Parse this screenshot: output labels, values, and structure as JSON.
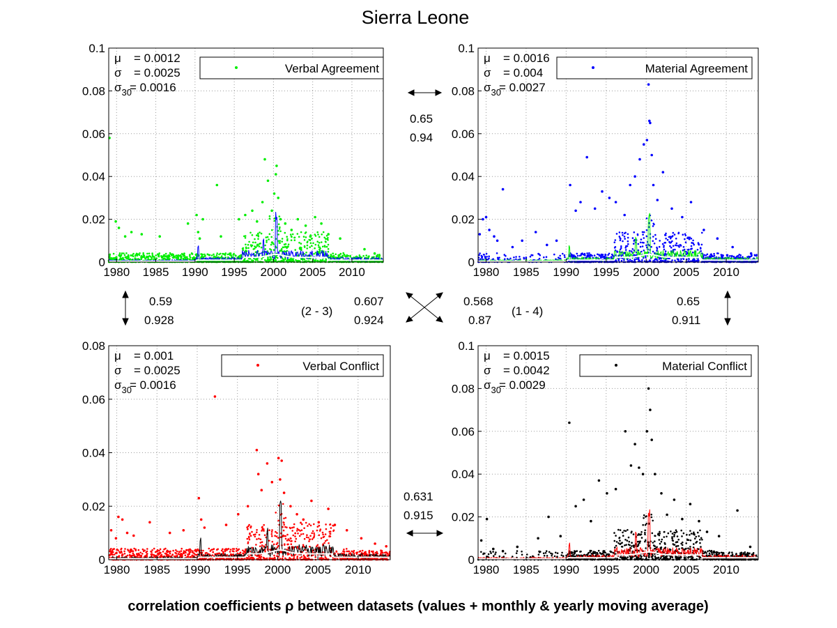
{
  "figure": {
    "title": "Sierra Leone",
    "caption": "correlation coefficients ρ between datasets (values + monthly & yearly moving average)"
  },
  "chart_data": [
    {
      "type": "scatter",
      "id": "tl",
      "legend": "Verbal Agreement",
      "color": "#00ee00",
      "avg_color": "#0000ff",
      "yearly_color": "#ffffff",
      "xlim": [
        1979,
        2014
      ],
      "ylim": [
        0,
        0.1
      ],
      "xticks": [
        1980,
        1985,
        1990,
        1995,
        2000,
        2005,
        2010
      ],
      "yticks": [
        0,
        0.02,
        0.04,
        0.06,
        0.08,
        0.1
      ],
      "yticklabels": [
        "0",
        "0.02",
        "0.04",
        "0.06",
        "0.08",
        "0.1"
      ],
      "stats": {
        "mu": "= 0.0012",
        "sigma": "= 0.0025",
        "sigma30": "= 0.0016"
      },
      "x": [
        1979.1,
        1979.9,
        1980.3,
        1981.1,
        1981.9,
        1983.2,
        1985.5,
        1989.1,
        1990.2,
        1990.4,
        1990.6,
        1991.0,
        1992.8,
        1993.3,
        1995.6,
        1996.4,
        1997.3,
        1997.9,
        1998.6,
        1998.9,
        1999.3,
        1999.8,
        2000.1,
        2000.3,
        2000.4,
        2000.6,
        2000.9,
        2001.5,
        2002.3,
        2003.1,
        2004.1,
        2004.7,
        2005.3,
        2006.1,
        2007.0,
        2008.5,
        2011.6,
        2012.9
      ],
      "y": [
        0.058,
        0.019,
        0.016,
        0.012,
        0.014,
        0.013,
        0.012,
        0.018,
        0.022,
        0.014,
        0.011,
        0.02,
        0.036,
        0.012,
        0.02,
        0.022,
        0.024,
        0.019,
        0.028,
        0.048,
        0.038,
        0.024,
        0.032,
        0.041,
        0.045,
        0.03,
        0.02,
        0.018,
        0.015,
        0.02,
        0.017,
        0.012,
        0.021,
        0.018,
        0.013,
        0.011,
        0.006,
        0.004
      ]
    },
    {
      "type": "scatter",
      "id": "tr",
      "legend": "Material Agreement",
      "color": "#0000ff",
      "avg_color": "#00ee00",
      "yearly_color": "#ffffff",
      "xlim": [
        1979,
        2014
      ],
      "ylim": [
        0,
        0.1
      ],
      "xticks": [
        1980,
        1985,
        1990,
        1995,
        2000,
        2005,
        2010
      ],
      "yticks": [
        0,
        0.02,
        0.04,
        0.06,
        0.08,
        0.1
      ],
      "yticklabels": [
        "0",
        "0.02",
        "0.04",
        "0.06",
        "0.08",
        "0.1"
      ],
      "stats": {
        "mu": "= 0.0016",
        "sigma": "= 0.004",
        "sigma30": "= 0.0027"
      },
      "x": [
        1979.2,
        1979.6,
        1980.0,
        1980.4,
        1981.0,
        1981.4,
        1982.1,
        1983.3,
        1984.5,
        1986.2,
        1987.6,
        1988.8,
        1990.5,
        1991.2,
        1991.8,
        1992.6,
        1993.6,
        1994.5,
        1995.4,
        1996.2,
        1997.3,
        1998.0,
        1998.6,
        1999.2,
        1999.7,
        2000.1,
        2000.3,
        2000.4,
        2000.5,
        2000.7,
        2000.9,
        2001.4,
        2002.1,
        2003.2,
        2004.5,
        2005.6,
        2007.2,
        2008.9,
        2010.8,
        2013.1
      ],
      "y": [
        0.013,
        0.02,
        0.021,
        0.015,
        0.012,
        0.01,
        0.034,
        0.007,
        0.01,
        0.014,
        0.008,
        0.01,
        0.036,
        0.024,
        0.028,
        0.049,
        0.025,
        0.033,
        0.03,
        0.028,
        0.022,
        0.036,
        0.04,
        0.048,
        0.055,
        0.057,
        0.083,
        0.066,
        0.065,
        0.05,
        0.036,
        0.029,
        0.042,
        0.025,
        0.021,
        0.028,
        0.015,
        0.011,
        0.007,
        0.004
      ]
    },
    {
      "type": "scatter",
      "id": "bl",
      "legend": "Verbal Conflict",
      "color": "#ff0000",
      "avg_color": "#000000",
      "yearly_color": "#ffffff",
      "xlim": [
        1979,
        2014
      ],
      "ylim": [
        0,
        0.08
      ],
      "xticks": [
        1980,
        1985,
        1990,
        1995,
        2000,
        2005,
        2010
      ],
      "yticks": [
        0,
        0.02,
        0.04,
        0.06,
        0.08
      ],
      "yticklabels": [
        "0",
        "0.02",
        "0.04",
        "0.06",
        "0.08"
      ],
      "stats": {
        "mu": "= 0.001",
        "sigma": "= 0.0025",
        "sigma30": "= 0.0016"
      },
      "x": [
        1979.3,
        1979.9,
        1980.2,
        1980.7,
        1981.3,
        1982.1,
        1984.1,
        1986.6,
        1988.3,
        1990.2,
        1990.5,
        1990.9,
        1992.2,
        1993.6,
        1995.1,
        1996.3,
        1997.4,
        1997.6,
        1998.0,
        1998.7,
        1999.3,
        2000.1,
        2000.3,
        2000.5,
        2000.8,
        2001.6,
        2002.4,
        2003.2,
        2004.2,
        2005.1,
        2006.3,
        2007.1,
        2008.6,
        2010.4,
        2012.1,
        2013.5
      ],
      "y": [
        0.011,
        0.008,
        0.016,
        0.015,
        0.01,
        0.009,
        0.014,
        0.01,
        0.011,
        0.023,
        0.015,
        0.012,
        0.061,
        0.013,
        0.017,
        0.02,
        0.041,
        0.032,
        0.026,
        0.036,
        0.029,
        0.038,
        0.03,
        0.037,
        0.025,
        0.02,
        0.017,
        0.015,
        0.022,
        0.014,
        0.019,
        0.013,
        0.011,
        0.008,
        0.006,
        0.005
      ]
    },
    {
      "type": "scatter",
      "id": "br",
      "legend": "Material Conflict",
      "color": "#000000",
      "avg_color": "#ff0000",
      "yearly_color": "#ffffff",
      "xlim": [
        1979,
        2014
      ],
      "ylim": [
        0,
        0.1
      ],
      "xticks": [
        1980,
        1985,
        1990,
        1995,
        2000,
        2005,
        2010
      ],
      "yticks": [
        0,
        0.02,
        0.04,
        0.06,
        0.08,
        0.1
      ],
      "yticklabels": [
        "0",
        "0.02",
        "0.04",
        "0.06",
        "0.08",
        "0.1"
      ],
      "stats": {
        "mu": "= 0.0015",
        "sigma": "= 0.0042",
        "sigma30": "= 0.0029"
      },
      "x": [
        1979.4,
        1980.1,
        1980.9,
        1982.1,
        1983.9,
        1986.5,
        1987.8,
        1989.3,
        1990.4,
        1991.2,
        1992.2,
        1993.1,
        1994.1,
        1995.1,
        1996.2,
        1997.4,
        1998.1,
        1998.6,
        1999.1,
        1999.6,
        2000.1,
        2000.3,
        2000.5,
        2000.7,
        2001.1,
        2001.9,
        2002.6,
        2003.5,
        2004.5,
        2005.5,
        2006.6,
        2007.6,
        2009.1,
        2011.4,
        2013.0
      ],
      "y": [
        0.009,
        0.019,
        0.005,
        0.004,
        0.006,
        0.01,
        0.02,
        0.011,
        0.064,
        0.025,
        0.028,
        0.018,
        0.037,
        0.031,
        0.033,
        0.06,
        0.044,
        0.054,
        0.043,
        0.04,
        0.06,
        0.08,
        0.07,
        0.056,
        0.04,
        0.031,
        0.021,
        0.028,
        0.019,
        0.026,
        0.018,
        0.013,
        0.011,
        0.023,
        0.006
      ]
    }
  ],
  "correlations": {
    "top_pair": [
      "0.65",
      "0.94"
    ],
    "left_pair": [
      "0.59",
      "0.928"
    ],
    "right_pair": [
      "0.65",
      "0.911"
    ],
    "bottom_pair": [
      "0.631",
      "0.915"
    ],
    "diag_left": {
      "label": "(2 - 3)",
      "values": [
        "0.607",
        "0.924"
      ]
    },
    "diag_right": {
      "label": "(1 - 4)",
      "values": [
        "0.568",
        "0.87"
      ]
    }
  }
}
